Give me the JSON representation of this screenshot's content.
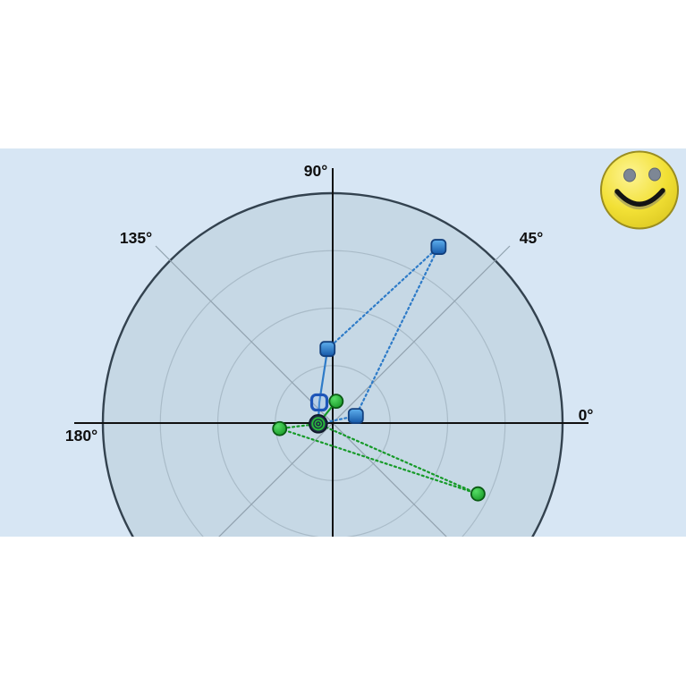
{
  "frame": {
    "background": "#ffffff",
    "content_background": "#d7e6f4",
    "plot_fill": "#c6d8e5",
    "plot_outline": "#33424f",
    "grid_ring_color": "#a9bbc8",
    "grid_diagonal_color": "#90a1ae",
    "axis_color": "#101010"
  },
  "smiley": {
    "name": "smiley-face-emoticon",
    "face_color": "#f2e035",
    "face_highlight": "#fdf493",
    "face_edge": "#9a8d20",
    "eye_color": "#7d8795",
    "mouth_color": "#141414"
  },
  "chart_data": {
    "type": "scatter",
    "projection": "polar",
    "angle_unit": "degrees",
    "radial_axis": {
      "max_norm": 1.0,
      "rings_norm": [
        0.25,
        0.5,
        0.75,
        1.0
      ],
      "ring_labels_visible": false
    },
    "angle_labels": [
      {
        "text": "90°",
        "angle_deg": 90
      },
      {
        "text": "135°",
        "angle_deg": 135
      },
      {
        "text": "45°",
        "angle_deg": 45
      },
      {
        "text": "0°",
        "angle_deg": 0
      },
      {
        "text": "180°",
        "angle_deg": 180
      }
    ],
    "origin_marker": {
      "name": "target-bullseye",
      "angle_deg": 183,
      "radius_norm": 0.063,
      "ring_color": "#28b83a",
      "disc_color": "#1d2a44"
    },
    "series": [
      {
        "name": "green-circle-series",
        "color": "#169a28",
        "marker_shape": "circle",
        "marker_stroke": "#0a5a14",
        "line_style": "dotted",
        "points": [
          {
            "angle_deg": 81,
            "radius_norm": 0.096,
            "marker": "circle",
            "dash_in": false
          },
          {
            "angle_deg": 183,
            "radius_norm": 0.063,
            "marker": "none",
            "dash_in": false
          },
          {
            "angle_deg": 186,
            "radius_norm": 0.232,
            "marker": "circle",
            "dash_in": true
          },
          {
            "angle_deg": -26,
            "radius_norm": 0.703,
            "marker": "circle",
            "dash_in": true
          },
          {
            "angle_deg": 183,
            "radius_norm": 0.063,
            "marker": "none",
            "dash_in": true
          }
        ]
      },
      {
        "name": "blue-square-series",
        "color": "#2e7bc8",
        "marker_shape": "square",
        "marker_stroke": "#12407e",
        "line_style": "mixed",
        "points": [
          {
            "angle_deg": 183,
            "radius_norm": 0.063,
            "marker": "none",
            "dash_in": false
          },
          {
            "angle_deg": 123,
            "radius_norm": 0.107,
            "marker": "open-square",
            "dash_in": false
          },
          {
            "angle_deg": 94,
            "radius_norm": 0.323,
            "marker": "square",
            "dash_in": false
          },
          {
            "angle_deg": 59,
            "radius_norm": 0.894,
            "marker": "square",
            "dash_in": true
          },
          {
            "angle_deg": 17,
            "radius_norm": 0.105,
            "marker": "square",
            "dash_in": true
          },
          {
            "angle_deg": 183,
            "radius_norm": 0.063,
            "marker": "none",
            "dash_in": true
          }
        ]
      }
    ]
  }
}
